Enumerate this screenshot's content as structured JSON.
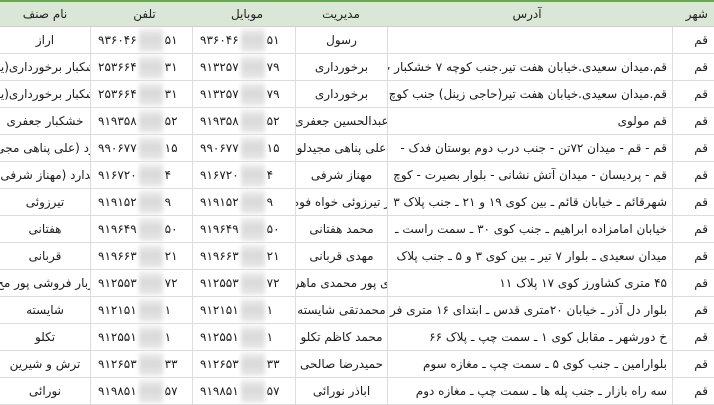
{
  "colors": {
    "header_bg": "#dbe7d6",
    "top_rule": "#6aa84f",
    "grid": "#dcdcdc"
  },
  "header": {
    "city": "شهر",
    "address": "آدرس",
    "management": "مدیریت",
    "mobile": "موبایل",
    "phone": "تلفن",
    "trade_name": "نام صنف"
  },
  "rows": [
    {
      "city": "قم",
      "address": "",
      "management": "رسول",
      "mobile": {
        "left": "۹۳۶۰۴۶",
        "right": "۵۱"
      },
      "phone": {
        "left": "۹۳۶۰۴۶",
        "right": "۵۱"
      },
      "trade_name": "اراز"
    },
    {
      "city": "قم",
      "address": "قم.میدان سعیدی.خیابان هفت تیر.جنب کوچه ۷ خشکبار ب",
      "management": "برخورداری",
      "mobile": {
        "left": "۹۱۳۲۵۷",
        "right": "۷۹"
      },
      "phone": {
        "left": "۲۵۳۶۶۴",
        "right": "۳۱"
      },
      "trade_name": "شکبار برخورداری(یز"
    },
    {
      "city": "قم",
      "address": "قم.میدان سعیدی.خیابان هفت تیر(حاجی زینل) جنب کوچ",
      "management": "برخورداری",
      "mobile": {
        "left": "۹۱۳۲۵۷",
        "right": "۷۹"
      },
      "phone": {
        "left": "۲۵۳۶۶۴",
        "right": "۳۱"
      },
      "trade_name": "شکبار برخورداری(یز"
    },
    {
      "city": "قم",
      "address": "قم مولوی",
      "management": "عبدالحسین جعفری",
      "mobile": {
        "left": "۹۱۹۳۵۸",
        "right": "۵۲"
      },
      "phone": {
        "left": "۹۱۹۳۵۸",
        "right": "۵۲"
      },
      "trade_name": "خشکبار جعفری"
    },
    {
      "city": "قم",
      "address": "قم - قم - میدان ۷۲تن - جنب درب دوم بوستان فدک -",
      "management": "علی پناهی مجیدلو",
      "mobile": {
        "left": "۹۹۰۶۷۷",
        "right": "۱۵"
      },
      "phone": {
        "left": "۹۹۰۶۷۷",
        "right": "۱۵"
      },
      "trade_name": "رد (علی پناهی مجی"
    },
    {
      "city": "قم",
      "address": "قم - پردیسان - میدان آتش نشانی - بلوار بصیرت - کوچ",
      "management": "مهناز شرفی",
      "mobile": {
        "left": "۹۱۶۷۲۰",
        "right": "۴"
      },
      "phone": {
        "left": "۹۱۶۷۲۰",
        "right": "۴"
      },
      "trade_name": "ندارد (مهناز شرفی)"
    },
    {
      "city": "قم",
      "address": "شهرقائم ـ خیابان قائم ـ بین کوی ۱۹ و ۲۱ ـ جنب پلاک ۳",
      "management": "ر تیرزوئی خواه فوه",
      "mobile": {
        "left": "۹۱۹۱۵۲",
        "right": "۹"
      },
      "phone": {
        "left": "۹۱۹۱۵۲",
        "right": "۹"
      },
      "trade_name": "تیرزوئی"
    },
    {
      "city": "قم",
      "address": "خیابان امامزاده ابراهیم ـ جنب کوی ۳۰ ـ سمت راست ـ",
      "management": "محمد هفتانی",
      "mobile": {
        "left": "۹۱۹۶۴۹",
        "right": "۵۰"
      },
      "phone": {
        "left": "۹۱۹۶۴۹",
        "right": "۵۰"
      },
      "trade_name": "هفتانی"
    },
    {
      "city": "قم",
      "address": "میدان سعیدی ـ بلوار ۷ تیر ـ بین کوی ۳ و ۵ ـ جنب پلاک",
      "management": "مهدی قربانی",
      "mobile": {
        "left": "۹۱۹۶۶۳",
        "right": "۲۱"
      },
      "phone": {
        "left": "۹۱۹۶۶۳",
        "right": "۲۱"
      },
      "trade_name": "قربانی"
    },
    {
      "city": "قم",
      "address": "۴۵ متری کشاورز کوی ۱۷ پلاک ۱۱",
      "management": "ی پور محمدی ماهر",
      "mobile": {
        "left": "۹۱۲۵۵۳",
        "right": "۷۲"
      },
      "phone": {
        "left": "۹۱۲۵۵۳",
        "right": "۷۲"
      },
      "trade_name": "ربار فروشی پور مح"
    },
    {
      "city": "قم",
      "address": "بلوار دل آذر ـ خیابان ۲۰متری قدس ـ ابتدای ۱۶ متری فر",
      "management": "محمدتقی شایسته",
      "mobile": {
        "left": "۹۱۲۱۵۱",
        "right": "۱"
      },
      "phone": {
        "left": "۹۱۲۱۵۱",
        "right": "۱"
      },
      "trade_name": "شایسته"
    },
    {
      "city": "قم",
      "address": "خ دورشهر ـ مقابل کوی ۱ ـ سمت چپ ـ پلاک ۶۶",
      "management": "محمد کاظم تکلو",
      "mobile": {
        "left": "۹۱۲۵۵۱",
        "right": "۱"
      },
      "phone": {
        "left": "۹۱۲۵۵۱",
        "right": "۱"
      },
      "trade_name": "تکلو"
    },
    {
      "city": "قم",
      "address": "بلوارامین ـ جنب کوی ۵ ـ سمت چپ ـ مغازه سوم",
      "management": "حمیدرضا صالحی",
      "mobile": {
        "left": "۹۱۲۶۵۳",
        "right": "۳۳"
      },
      "phone": {
        "left": "۹۱۲۶۵۳",
        "right": "۳۳"
      },
      "trade_name": "ترش و شیرین"
    },
    {
      "city": "قم",
      "address": "سه راه بازار ـ جنب پله ها ـ سمت چپ ـ مغازه دوم",
      "management": "اباذر نورائی",
      "mobile": {
        "left": "۹۱۹۸۵۱",
        "right": "۵۷"
      },
      "phone": {
        "left": "۹۱۹۸۵۱",
        "right": "۵۷"
      },
      "trade_name": "نورائی"
    }
  ]
}
